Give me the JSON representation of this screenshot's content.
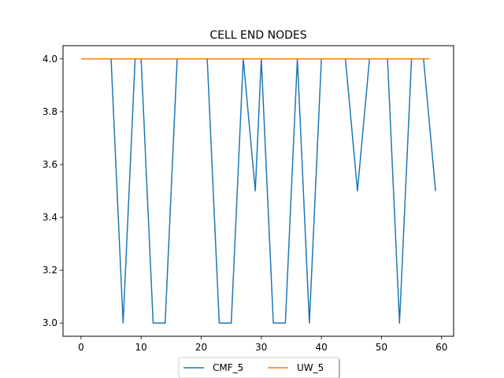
{
  "chart_data": {
    "type": "line",
    "title": "CELL END NODES",
    "xlabel": "",
    "ylabel": "",
    "xlim": [
      -3.0,
      62.0
    ],
    "ylim": [
      2.95,
      4.05
    ],
    "xticks": [
      0,
      10,
      20,
      30,
      40,
      50,
      60
    ],
    "yticks": [
      3.0,
      3.2,
      3.4,
      3.6,
      3.8,
      4.0
    ],
    "ytick_labels": [
      "3.0",
      "3.2",
      "3.4",
      "3.6",
      "3.8",
      "4.0"
    ],
    "grid": false,
    "legend_position": "bottom-center, below axes, 2 columns",
    "series": [
      {
        "name": "CMF_5",
        "color": "#1f77b4",
        "x": [
          0,
          1,
          2,
          3,
          4,
          5,
          6,
          7,
          8,
          9,
          10,
          11,
          12,
          13,
          14,
          15,
          16,
          17,
          18,
          19,
          20,
          21,
          22,
          23,
          24,
          25,
          26,
          27,
          28,
          29,
          30,
          31,
          32,
          33,
          34,
          35,
          36,
          37,
          38,
          39,
          40,
          41,
          42,
          43,
          44,
          45,
          46,
          47,
          48,
          49,
          50,
          51,
          52,
          53,
          54,
          55,
          56,
          57,
          58,
          59
        ],
        "values": [
          4,
          4,
          4,
          4,
          4,
          4,
          3.5,
          3,
          3.5,
          4,
          4,
          3.5,
          3,
          3,
          3,
          3.5,
          4,
          4,
          4,
          4,
          4,
          4,
          3.5,
          3,
          3,
          3,
          3.5,
          4,
          3.75,
          3.5,
          4,
          3.5,
          3,
          3,
          3,
          3.5,
          4,
          3.5,
          3,
          3.5,
          4,
          4,
          4,
          4,
          4,
          3.75,
          3.5,
          3.75,
          4,
          4,
          4,
          4,
          3.5,
          3,
          3.5,
          4,
          4,
          4,
          3.75,
          3.5
        ]
      },
      {
        "name": "UW_5",
        "color": "#ff7f0e",
        "x": [
          0,
          1,
          2,
          3,
          4,
          5,
          6,
          7,
          8,
          9,
          10,
          11,
          12,
          13,
          14,
          15,
          16,
          17,
          18,
          19,
          20,
          21,
          22,
          23,
          24,
          25,
          26,
          27,
          28,
          29,
          30,
          31,
          32,
          33,
          34,
          35,
          36,
          37,
          38,
          39,
          40,
          41,
          42,
          43,
          44,
          45,
          46,
          47,
          48,
          49,
          50,
          51,
          52,
          53,
          54,
          55,
          56,
          57,
          58
        ],
        "values": [
          4,
          4,
          4,
          4,
          4,
          4,
          4,
          4,
          4,
          4,
          4,
          4,
          4,
          4,
          4,
          4,
          4,
          4,
          4,
          4,
          4,
          4,
          4,
          4,
          4,
          4,
          4,
          4,
          4,
          4,
          4,
          4,
          4,
          4,
          4,
          4,
          4,
          4,
          4,
          4,
          4,
          4,
          4,
          4,
          4,
          4,
          4,
          4,
          4,
          4,
          4,
          4,
          4,
          4,
          4,
          4,
          4,
          4,
          4
        ]
      }
    ]
  }
}
